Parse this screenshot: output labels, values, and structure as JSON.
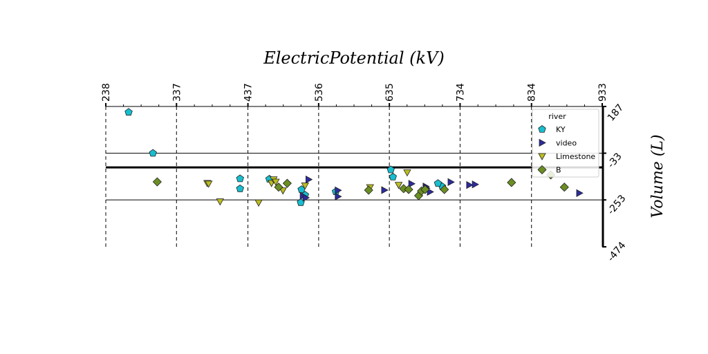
{
  "chart_data": {
    "type": "scatter",
    "title": "ElectricPotential (kV)",
    "xlabel": "ElectricPotential (kV)",
    "ylabel": "Volume (L)",
    "xlim": [
      238,
      933
    ],
    "ylim": [
      -474,
      187
    ],
    "x_ticks": [
      "238",
      "337",
      "437",
      "536",
      "635",
      "734",
      "834",
      "933"
    ],
    "y_ticks": [
      "187",
      "-33",
      "-253",
      "-474"
    ],
    "x_axis_position": "top",
    "y_axis_position": "right",
    "grid": "vertical dashed at x ticks; horizontal lines at y ticks",
    "legend": {
      "title": "river",
      "placement": "top-right"
    },
    "series": [
      {
        "name": "KY",
        "marker": "pentagon",
        "color": "#17becf",
        "points": [
          [
            270,
            160
          ],
          [
            304,
            -33
          ],
          [
            426,
            -153
          ],
          [
            426,
            -200
          ],
          [
            467,
            -155
          ],
          [
            512,
            -204
          ],
          [
            511,
            -265
          ],
          [
            517,
            -230
          ],
          [
            560,
            -214
          ],
          [
            637,
            -111
          ],
          [
            640,
            -145
          ],
          [
            709,
            -190
          ],
          [
            703,
            -175
          ]
        ]
      },
      {
        "name": "video",
        "marker": "triangle-right",
        "color": "#2c2c9e",
        "points": [
          [
            522,
            -157
          ],
          [
            514,
            -234
          ],
          [
            518,
            -243
          ],
          [
            563,
            -237
          ],
          [
            563,
            -208
          ],
          [
            628,
            -207
          ],
          [
            666,
            -177
          ],
          [
            686,
            -190
          ],
          [
            692,
            -215
          ],
          [
            721,
            -169
          ],
          [
            687,
            -198
          ],
          [
            747,
            -183
          ],
          [
            755,
            -180
          ],
          [
            901,
            -221
          ]
        ]
      },
      {
        "name": "Limestone",
        "marker": "triangle-down",
        "color": "#bcbd22",
        "points": [
          [
            380,
            -174
          ],
          [
            382,
            -177
          ],
          [
            398,
            -261
          ],
          [
            452,
            -266
          ],
          [
            470,
            -174
          ],
          [
            473,
            -157
          ],
          [
            476,
            -168
          ],
          [
            486,
            -209
          ],
          [
            517,
            -186
          ],
          [
            608,
            -194
          ],
          [
            648,
            -183
          ],
          [
            660,
            -124
          ]
        ]
      },
      {
        "name": "B",
        "marker": "diamond",
        "color": "#6b8e23",
        "points": [
          [
            310,
            -168
          ],
          [
            480,
            -193
          ],
          [
            492,
            -175
          ],
          [
            606,
            -207
          ],
          [
            655,
            -200
          ],
          [
            662,
            -204
          ],
          [
            676,
            -233
          ],
          [
            680,
            -211
          ],
          [
            685,
            -204
          ],
          [
            712,
            -204
          ],
          [
            806,
            -171
          ],
          [
            861,
            -135
          ],
          [
            880,
            -193
          ]
        ]
      }
    ]
  }
}
